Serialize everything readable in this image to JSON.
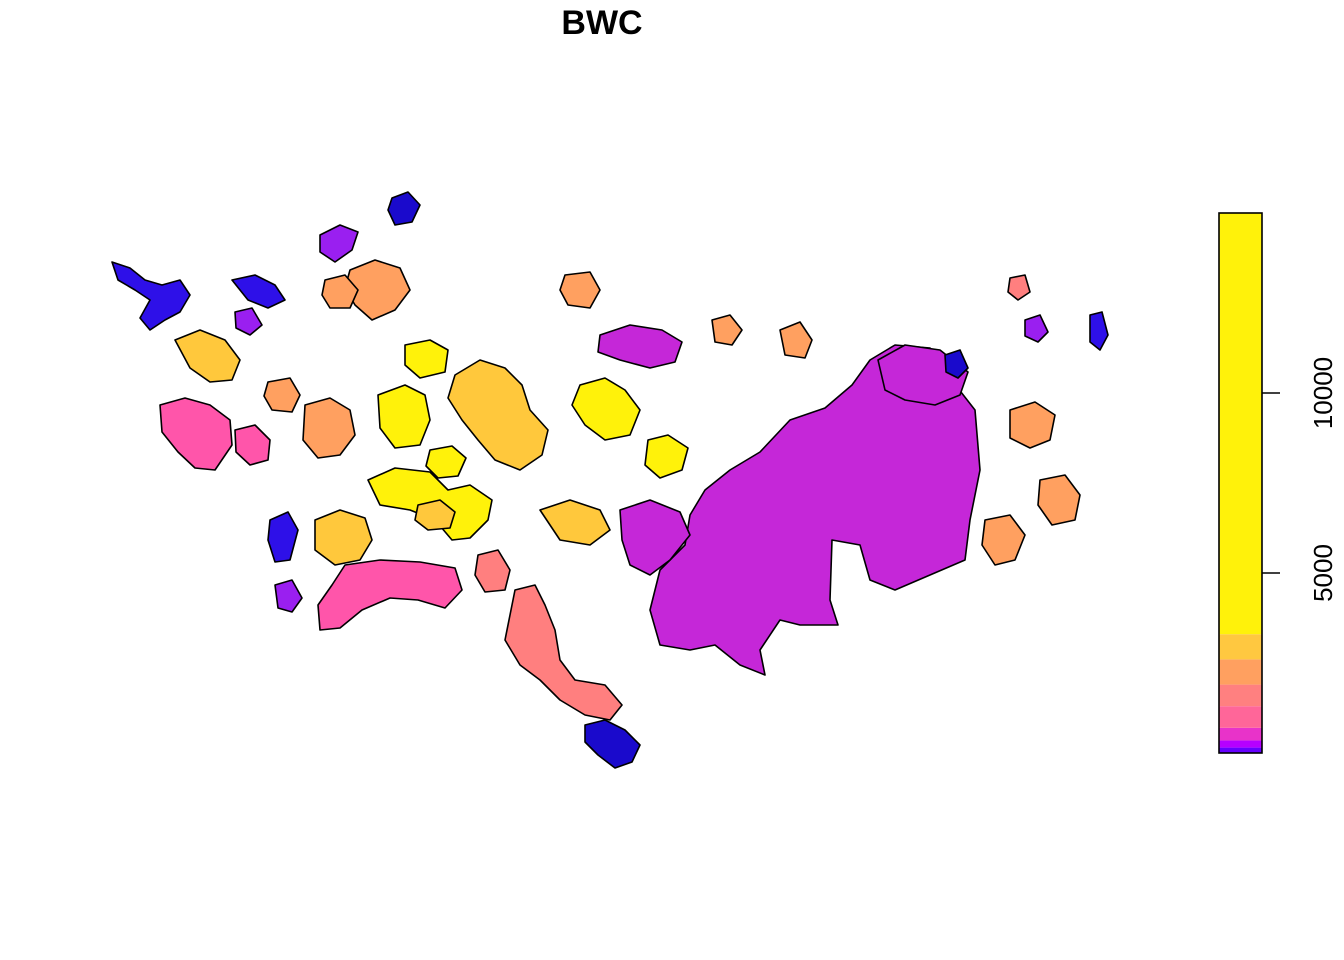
{
  "title": "BWC",
  "legend": {
    "type": "continuous",
    "tick_labels": [
      "5000",
      "10000"
    ],
    "ticks": [
      5000,
      10000
    ],
    "range": [
      0,
      15000
    ],
    "bands": [
      {
        "from": 0,
        "to": 150,
        "color": "#6600FF"
      },
      {
        "from": 150,
        "to": 350,
        "color": "#B600FF"
      },
      {
        "from": 350,
        "to": 700,
        "color": "#E833C9"
      },
      {
        "from": 700,
        "to": 1300,
        "color": "#FF6699"
      },
      {
        "from": 1300,
        "to": 1900,
        "color": "#FF8080"
      },
      {
        "from": 1900,
        "to": 2600,
        "color": "#FFA060"
      },
      {
        "from": 2600,
        "to": 3300,
        "color": "#FFC840"
      },
      {
        "from": 3300,
        "to": 15000,
        "color": "#FFF20A"
      }
    ]
  },
  "map_palette": {
    "blue": "#2E10E8",
    "navy": "#1A0ACC",
    "violet": "#9A1FF0",
    "magenta": "#C527D8",
    "pink": "#FF55AA",
    "salmon": "#FF7F7F",
    "orange": "#FFA060",
    "amber": "#FFC83C",
    "yellow": "#FFF20A"
  }
}
